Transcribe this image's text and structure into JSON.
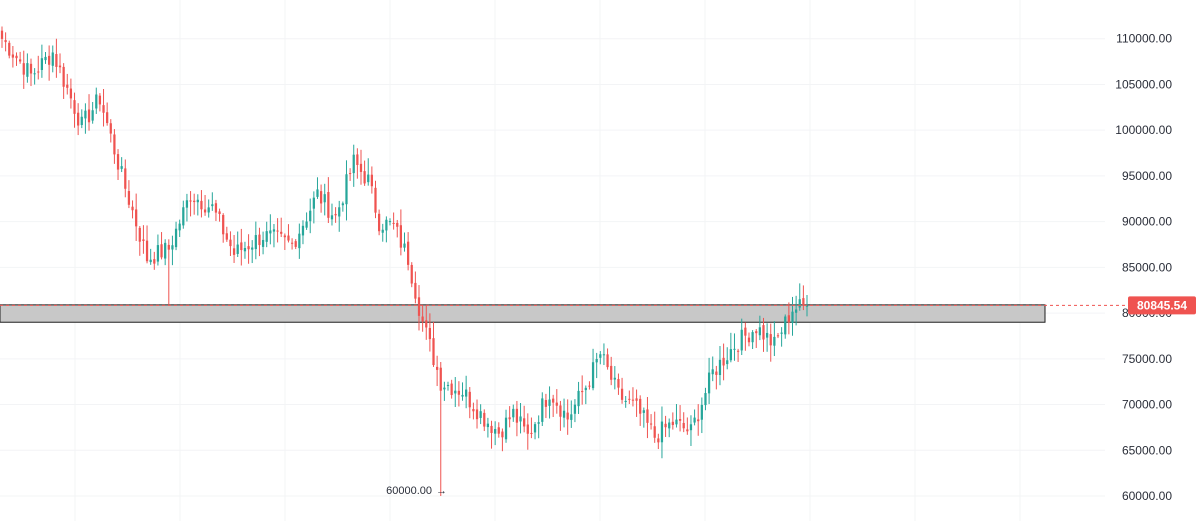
{
  "colors": {
    "up": "#26a69a",
    "down": "#ef5350",
    "grid": "#f3f4f6",
    "zone_fill": "#c8c8c8",
    "zone_stroke": "#1e1e1e",
    "price_line": "#ef5350",
    "axis_text": "#2a2e39",
    "price_tag_bg": "#ef5350",
    "price_tag_text": "#ffffff"
  },
  "chart_data": {
    "type": "candlestick",
    "ylim": [
      60000,
      115000
    ],
    "y_ticks": [
      "110000.00",
      "105000.00",
      "100000.00",
      "95000.00",
      "90000.00",
      "85000.00",
      "80000.00",
      "75000.00",
      "70000.00",
      "65000.00",
      "60000.00"
    ],
    "y_tick_values": [
      110000,
      105000,
      100000,
      95000,
      90000,
      85000,
      80000,
      75000,
      70000,
      65000,
      60000
    ],
    "current_price": 80845.54,
    "current_price_label": "80845.54",
    "low_annotation": {
      "label": "60000.00",
      "arrow": "→",
      "value": 60000
    },
    "support_zone": {
      "low": 79000,
      "high": 80900
    },
    "waypoints": [
      [
        0,
        110000
      ],
      [
        8,
        106000
      ],
      [
        14,
        108500
      ],
      [
        22,
        100500
      ],
      [
        27,
        103500
      ],
      [
        33,
        95000
      ],
      [
        40,
        86000
      ],
      [
        46,
        87000
      ],
      [
        52,
        93000
      ],
      [
        58,
        91500
      ],
      [
        64,
        86500
      ],
      [
        72,
        88500
      ],
      [
        80,
        87500
      ],
      [
        87,
        93000
      ],
      [
        92,
        90500
      ],
      [
        97,
        96500
      ],
      [
        101,
        94500
      ],
      [
        104,
        90000
      ],
      [
        108,
        89500
      ],
      [
        112,
        86000
      ],
      [
        116,
        79000
      ],
      [
        121,
        72500
      ],
      [
        127,
        71500
      ],
      [
        133,
        68500
      ],
      [
        137,
        67000
      ],
      [
        141,
        69000
      ],
      [
        145,
        66500
      ],
      [
        151,
        71500
      ],
      [
        156,
        68500
      ],
      [
        161,
        72000
      ],
      [
        165,
        75500
      ],
      [
        170,
        71000
      ],
      [
        175,
        69500
      ],
      [
        180,
        66500
      ],
      [
        185,
        68000
      ],
      [
        190,
        67000
      ],
      [
        196,
        73500
      ],
      [
        202,
        76500
      ],
      [
        208,
        78500
      ],
      [
        213,
        76500
      ],
      [
        218,
        80500
      ],
      [
        222,
        80800
      ]
    ]
  }
}
